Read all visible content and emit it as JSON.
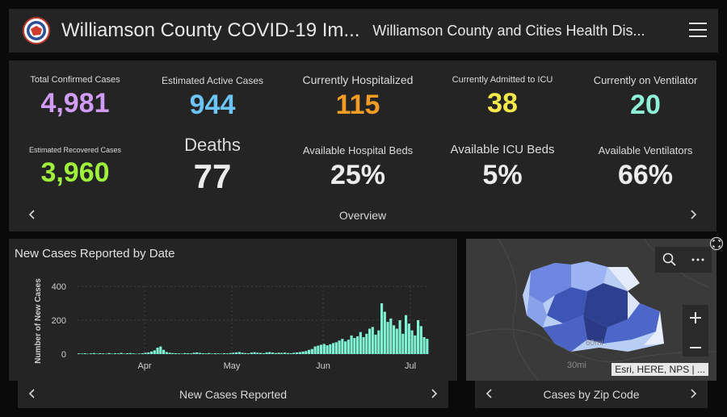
{
  "header": {
    "title": "Williamson County COVID-19 Im...",
    "subtitle": "Williamson County and Cities Health Dis..."
  },
  "stats": [
    {
      "label": "Total Confirmed Cases",
      "value": "4,981",
      "color": "#d09cf5"
    },
    {
      "label": "Estimated Active Cases",
      "value": "944",
      "color": "#6cc4f7"
    },
    {
      "label": "Currently Hospitalized",
      "value": "115",
      "color": "#f39c24"
    },
    {
      "label": "Currently Admitted to ICU",
      "value": "38",
      "color": "#f6e84a"
    },
    {
      "label": "Currently on Ventilator",
      "value": "20",
      "color": "#8ff0d8"
    },
    {
      "label": "Estimated Recovered Cases",
      "value": "3,960",
      "color": "#9ef03c"
    },
    {
      "label": "Deaths",
      "value": "77",
      "color": "#ececec"
    },
    {
      "label": "Available Hospital Beds",
      "value": "25%",
      "color": "#ececec"
    },
    {
      "label": "Available ICU Beds",
      "value": "5%",
      "color": "#ececec"
    },
    {
      "label": "Available Ventilators",
      "value": "66%",
      "color": "#ececec"
    }
  ],
  "pagers": {
    "overview": "Overview",
    "new_cases": "New Cases Reported",
    "zip": "Cases by Zip Code"
  },
  "map": {
    "attribution": "Esri, HERE, NPS | ...",
    "label_60mi": "60mi",
    "label_30mi": "30mi"
  },
  "chart_data": {
    "type": "bar",
    "title": "New Cases Reported by Date",
    "ylabel": "Number of New Cases",
    "xlabel": "",
    "ylim": [
      0,
      400
    ],
    "yticks": [
      0,
      200,
      400
    ],
    "xticks": [
      "Apr",
      "May",
      "Jun",
      "Jul"
    ],
    "color": "#7ff2d3",
    "values": [
      4,
      3,
      5,
      2,
      4,
      6,
      3,
      5,
      4,
      2,
      6,
      3,
      5,
      4,
      7,
      3,
      5,
      6,
      4,
      2,
      3,
      5,
      8,
      10,
      15,
      22,
      38,
      45,
      25,
      12,
      8,
      6,
      5,
      4,
      3,
      6,
      5,
      4,
      8,
      10,
      7,
      5,
      4,
      6,
      3,
      5,
      4,
      3,
      5,
      4,
      6,
      8,
      10,
      12,
      8,
      6,
      5,
      9,
      11,
      8,
      7,
      5,
      10,
      12,
      9,
      6,
      8,
      7,
      9,
      6,
      5,
      8,
      10,
      12,
      15,
      18,
      25,
      30,
      45,
      50,
      55,
      60,
      52,
      58,
      65,
      70,
      80,
      90,
      75,
      85,
      110,
      95,
      105,
      130,
      100,
      120,
      150,
      160,
      115,
      140,
      300,
      250,
      190,
      210,
      170,
      150,
      200,
      120,
      230,
      180,
      140,
      110,
      200,
      165,
      100,
      90
    ]
  },
  "colors": {
    "accent": "#7ff2d3",
    "panel": "#242424",
    "map_base": "#3a3a3a"
  },
  "icons": {
    "menu": "menu-icon",
    "search": "search-icon",
    "more": "more-icon",
    "zoom_in": "plus-icon",
    "zoom_out": "minus-icon",
    "expand": "expand-icon"
  }
}
